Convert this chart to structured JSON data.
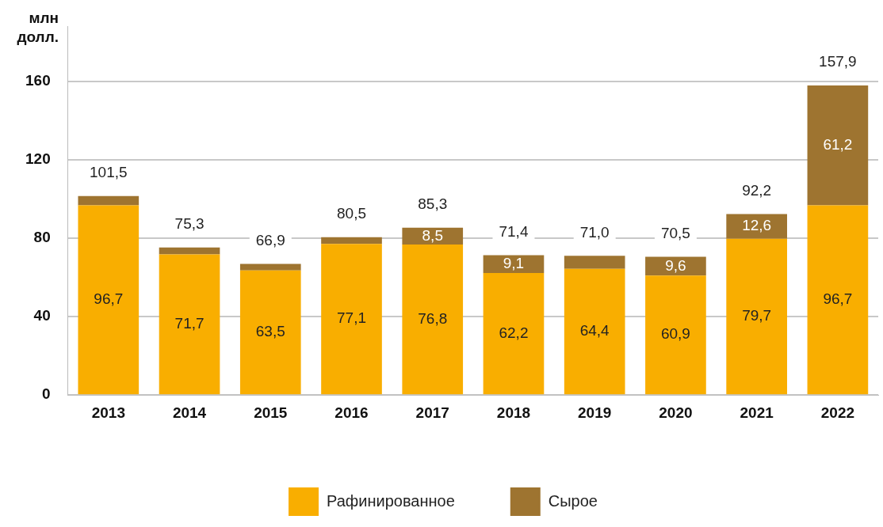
{
  "chart_data": {
    "type": "bar",
    "stacked": true,
    "ylabel": "млн долл.",
    "categories": [
      "2013",
      "2014",
      "2015",
      "2016",
      "2017",
      "2018",
      "2019",
      "2020",
      "2021",
      "2022"
    ],
    "series": [
      {
        "name": "Рафинированное",
        "color": "#f9ae00",
        "values": [
          96.7,
          71.7,
          63.5,
          77.1,
          76.8,
          62.2,
          64.4,
          60.9,
          79.7,
          96.7
        ],
        "value_labels": [
          "96,7",
          "71,7",
          "63,5",
          "77,1",
          "76,8",
          "62,2",
          "64,4",
          "60,9",
          "79,7",
          "96,7"
        ]
      },
      {
        "name": "Сырое",
        "color": "#9e7430",
        "values": [
          4.8,
          3.6,
          3.4,
          3.4,
          8.5,
          9.1,
          6.6,
          9.6,
          12.6,
          61.2
        ],
        "value_labels": [
          null,
          null,
          null,
          null,
          "8,5",
          "9,1",
          null,
          "9,6",
          "12,6",
          "61,2"
        ]
      }
    ],
    "totals": [
      "101,5",
      "75,3",
      "66,9",
      "80,5",
      "85,3",
      "71,4",
      "71,0",
      "70,5",
      "92,2",
      "157,9"
    ],
    "ylim": [
      0,
      188
    ],
    "yticks": [
      0,
      40,
      80,
      120,
      160
    ],
    "grid": "y",
    "legend": "bottom"
  }
}
